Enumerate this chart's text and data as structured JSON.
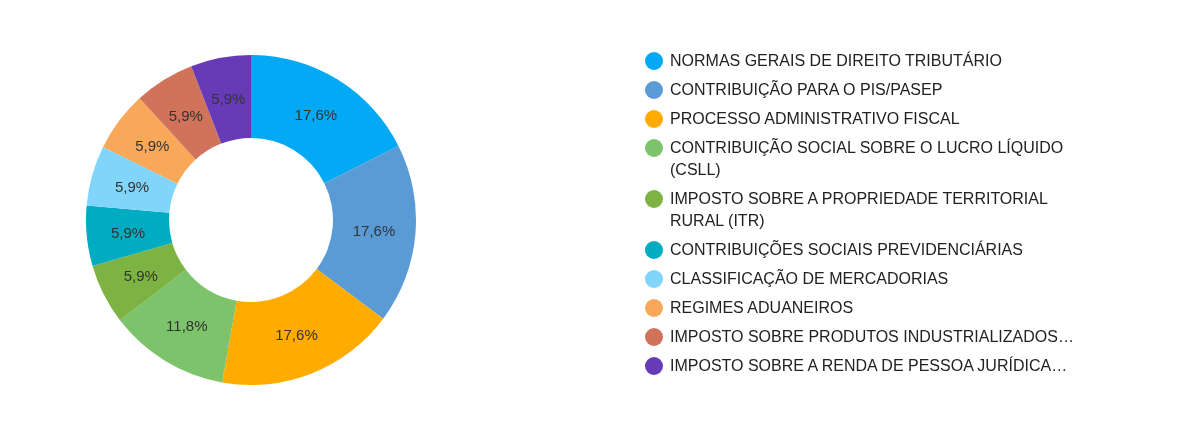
{
  "chart_data": {
    "type": "donut",
    "categories": [
      "NORMAS GERAIS DE DIREITO TRIBUTÁRIO",
      "CONTRIBUIÇÃO PARA O PIS/PASEP",
      "PROCESSO ADMINISTRATIVO FISCAL",
      "CONTRIBUIÇÃO SOCIAL SOBRE O LUCRO LÍQUIDO (CSLL)",
      "IMPOSTO SOBRE A PROPRIEDADE TERRITORIAL RURAL (ITR)",
      "CONTRIBUIÇÕES SOCIAIS PREVIDENCIÁRIAS",
      "CLASSIFICAÇÃO DE MERCADORIAS",
      "REGIMES ADUANEIROS",
      "IMPOSTO SOBRE PRODUTOS INDUSTRIALIZADOS…",
      "IMPOSTO SOBRE A RENDA DE PESSOA JURÍDICA…"
    ],
    "values": [
      17.6,
      17.6,
      17.6,
      11.8,
      5.9,
      5.9,
      5.9,
      5.9,
      5.9,
      5.9
    ],
    "value_labels": [
      "17,6%",
      "17,6%",
      "17,6%",
      "11,8%",
      "5,9%",
      "5,9%",
      "5,9%",
      "5,9%",
      "5,9%",
      "5,9%"
    ],
    "colors": [
      "#03a9f4",
      "#5b9bd5",
      "#ffab00",
      "#7cc36b",
      "#7cb342",
      "#00acc1",
      "#81d4fa",
      "#f9a85a",
      "#d0735a",
      "#673ab7"
    ],
    "legend": "right"
  }
}
